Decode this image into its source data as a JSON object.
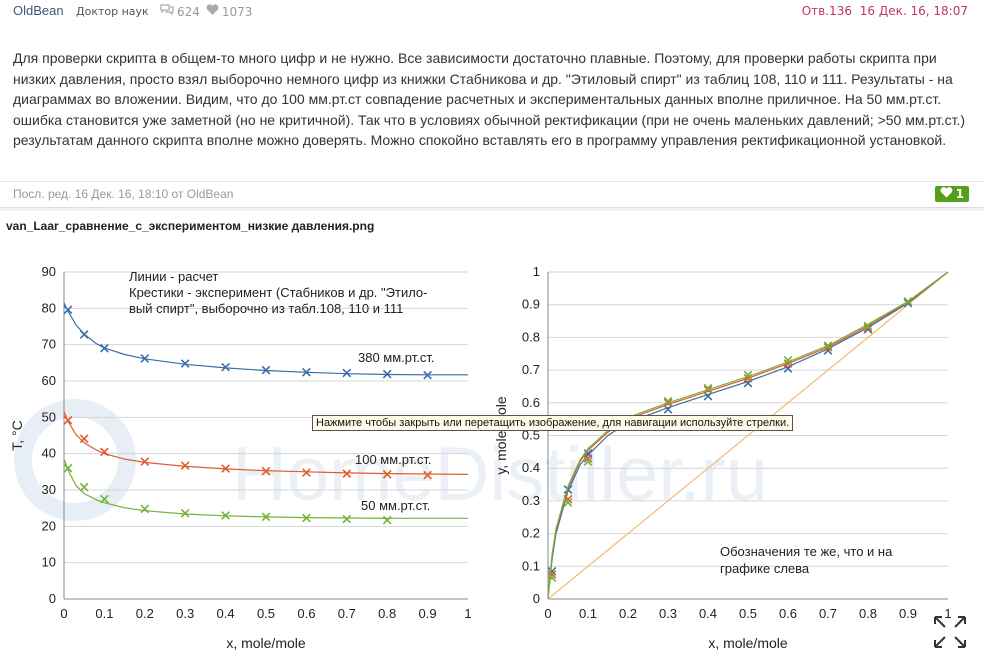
{
  "post": {
    "author": "OldBean",
    "rank": "Доктор наук",
    "comments_count": "624",
    "likes_count": "1073",
    "reply_ref": "Отв.136",
    "date": "16 Дек. 16, 18:07",
    "text": "Для проверки скрипта в общем-то много цифр и не нужно. Все зависимости достаточно плавные. Поэтому, для проверки работы скрипта при низких давления, просто взял выборочно немного цифр из книжки Стабникова и др. \"Этиловый спирт\" из таблиц 108, 110 и 111. Результаты - на диаграммах во вложении. Видим, что до 100 мм.рт.ст совпадение расчетных и экспериментальных данных вполне приличное. На 50 мм.рт.ст. ошибка становится уже заметной (но не критичной). Так что в условиях обычной ректификации (при не очень маленьких давлений; >50 мм.рт.ст.) результатам данного скрипта вполне можно доверять. Можно спокойно вставлять его в программу управления ректификационной установкой.",
    "edit_info": "Посл. ред. 16 Дек. 16, 18:10 от OldBean",
    "post_likes": "1"
  },
  "attachment": {
    "filename": "van_Laar_сравнение_с_экспериментом_низкие давления.png",
    "watermark": "HomeDistiller.ru",
    "tooltip": "Нажмите чтобы закрыть или перетащить изображение, для навигации используйте стрелки."
  },
  "icons": {
    "comments": "speech-bubbles-icon",
    "likes": "heart-icon",
    "like_badge": "heart-icon",
    "expand": "expand-arrows-icon"
  },
  "colors": {
    "blue": "#3a6fa8",
    "red": "#e05a2c",
    "green": "#74b33a",
    "orange": "#f4b978",
    "date_text": "#c0385a",
    "like_green": "#55a01a"
  },
  "chart_data": [
    {
      "type": "line",
      "xlabel": "x, mole/mole",
      "ylabel": "T, °C",
      "xlim": [
        0,
        1
      ],
      "ylim": [
        0,
        90
      ],
      "x_ticks": [
        "0",
        "0.1",
        "0.2",
        "0.3",
        "0.4",
        "0.5",
        "0.6",
        "0.7",
        "0.8",
        "0.9",
        "1"
      ],
      "y_ticks": [
        "0",
        "10",
        "20",
        "30",
        "40",
        "50",
        "60",
        "70",
        "80",
        "90"
      ],
      "grid": "horizontal",
      "annotations": [
        "Линии - расчет",
        "Крестики - эксперимент (Стабников и др. \"Этило-",
        "вый спирт\", выборочно из табл.108, 110 и 111"
      ],
      "series": [
        {
          "name": "380 мм.рт.ст.",
          "color": "#3a6fa8",
          "experiment_x": [
            0.01,
            0.05,
            0.1,
            0.2,
            0.3,
            0.4,
            0.5,
            0.6,
            0.7,
            0.8,
            0.9
          ],
          "experiment_y": [
            79.6,
            72.8,
            69.0,
            66.2,
            64.8,
            63.8,
            63.0,
            62.4,
            62.2,
            61.9,
            61.6
          ],
          "calc_x": [
            0,
            0.01,
            0.03,
            0.05,
            0.08,
            0.1,
            0.15,
            0.2,
            0.3,
            0.4,
            0.5,
            0.6,
            0.7,
            0.8,
            0.9,
            1.0
          ],
          "calc_y": [
            81.5,
            79.2,
            75.4,
            72.9,
            70.3,
            69.1,
            67.3,
            66.1,
            64.6,
            63.6,
            62.9,
            62.4,
            62.0,
            61.8,
            61.7,
            61.7
          ]
        },
        {
          "name": "100 мм.рт.ст.",
          "color": "#e05a2c",
          "experiment_x": [
            0.01,
            0.05,
            0.1,
            0.2,
            0.3,
            0.4,
            0.5,
            0.6,
            0.7,
            0.8,
            0.9
          ],
          "experiment_y": [
            49.2,
            44.1,
            40.5,
            37.8,
            36.7,
            35.9,
            35.2,
            34.8,
            34.5,
            34.3,
            34.1
          ],
          "calc_x": [
            0,
            0.01,
            0.03,
            0.05,
            0.08,
            0.1,
            0.15,
            0.2,
            0.3,
            0.4,
            0.5,
            0.6,
            0.7,
            0.8,
            0.9,
            1.0
          ],
          "calc_y": [
            51.5,
            48.9,
            45.2,
            43.0,
            41.0,
            40.0,
            38.5,
            37.6,
            36.5,
            35.8,
            35.3,
            35.0,
            34.7,
            34.5,
            34.4,
            34.3
          ]
        },
        {
          "name": "50 мм.рт.ст.",
          "color": "#74b33a",
          "experiment_x": [
            0.01,
            0.05,
            0.1,
            0.2,
            0.3,
            0.4,
            0.5,
            0.6,
            0.7,
            0.8
          ],
          "experiment_y": [
            36.0,
            30.8,
            27.5,
            24.8,
            23.6,
            23.0,
            22.6,
            22.3,
            22.0,
            21.7
          ],
          "calc_x": [
            0,
            0.01,
            0.03,
            0.05,
            0.08,
            0.1,
            0.15,
            0.2,
            0.3,
            0.4,
            0.5,
            0.6,
            0.7,
            0.8,
            0.9,
            1.0
          ],
          "calc_y": [
            38.5,
            35.5,
            31.2,
            29.0,
            27.3,
            26.5,
            25.1,
            24.3,
            23.4,
            22.9,
            22.6,
            22.4,
            22.3,
            22.2,
            22.2,
            22.2
          ]
        }
      ]
    },
    {
      "type": "line",
      "xlabel": "x, mole/mole",
      "ylabel": "y, mole/mole",
      "xlim": [
        0,
        1
      ],
      "ylim": [
        0,
        1
      ],
      "x_ticks": [
        "0",
        "0.1",
        "0.2",
        "0.3",
        "0.4",
        "0.5",
        "0.6",
        "0.7",
        "0.8",
        "0.9",
        "1"
      ],
      "y_ticks": [
        "0",
        "0.1",
        "0.2",
        "0.3",
        "0.4",
        "0.5",
        "0.6",
        "0.7",
        "0.8",
        "0.9",
        "1"
      ],
      "grid": "horizontal",
      "annotations": [
        "Обозначения те же, что и на",
        "графике слева"
      ],
      "diagonal": {
        "color": "#f4b978",
        "x": [
          0,
          1
        ],
        "y": [
          0,
          1
        ]
      },
      "series": [
        {
          "name": "380 мм.рт.ст.",
          "color": "#3a6fa8",
          "experiment_x": [
            0.01,
            0.05,
            0.1,
            0.3,
            0.4,
            0.5,
            0.6,
            0.7,
            0.8,
            0.9
          ],
          "experiment_y": [
            0.085,
            0.335,
            0.445,
            0.58,
            0.62,
            0.66,
            0.705,
            0.76,
            0.825,
            0.905
          ],
          "calc_x": [
            0,
            0.01,
            0.02,
            0.05,
            0.08,
            0.1,
            0.15,
            0.2,
            0.3,
            0.4,
            0.5,
            0.6,
            0.7,
            0.8,
            0.9,
            1.0
          ],
          "calc_y": [
            0,
            0.12,
            0.2,
            0.33,
            0.41,
            0.44,
            0.5,
            0.54,
            0.585,
            0.625,
            0.665,
            0.71,
            0.765,
            0.83,
            0.905,
            1.0
          ]
        },
        {
          "name": "100 мм.рт.ст.",
          "color": "#e05a2c",
          "experiment_x": [
            0.01,
            0.05,
            0.1,
            0.3,
            0.4,
            0.5,
            0.6,
            0.7,
            0.8,
            0.9
          ],
          "experiment_y": [
            0.075,
            0.305,
            0.43,
            0.6,
            0.64,
            0.675,
            0.72,
            0.77,
            0.83,
            0.91
          ],
          "calc_x": [
            0,
            0.01,
            0.02,
            0.05,
            0.08,
            0.1,
            0.15,
            0.2,
            0.3,
            0.4,
            0.5,
            0.6,
            0.7,
            0.8,
            0.9,
            1.0
          ],
          "calc_y": [
            0,
            0.13,
            0.21,
            0.34,
            0.42,
            0.455,
            0.51,
            0.55,
            0.595,
            0.635,
            0.675,
            0.72,
            0.77,
            0.835,
            0.908,
            1.0
          ]
        },
        {
          "name": "50 мм.рт.ст.",
          "color": "#74b33a",
          "experiment_x": [
            0.01,
            0.05,
            0.1,
            0.3,
            0.4,
            0.5,
            0.6,
            0.7,
            0.8,
            0.9
          ],
          "experiment_y": [
            0.065,
            0.295,
            0.42,
            0.605,
            0.645,
            0.685,
            0.73,
            0.775,
            0.835,
            0.91
          ],
          "calc_x": [
            0,
            0.01,
            0.02,
            0.05,
            0.08,
            0.1,
            0.15,
            0.2,
            0.3,
            0.4,
            0.5,
            0.6,
            0.7,
            0.8,
            0.9,
            1.0
          ],
          "calc_y": [
            0,
            0.135,
            0.215,
            0.345,
            0.425,
            0.46,
            0.515,
            0.555,
            0.6,
            0.64,
            0.68,
            0.725,
            0.775,
            0.84,
            0.91,
            1.0
          ]
        }
      ]
    }
  ]
}
